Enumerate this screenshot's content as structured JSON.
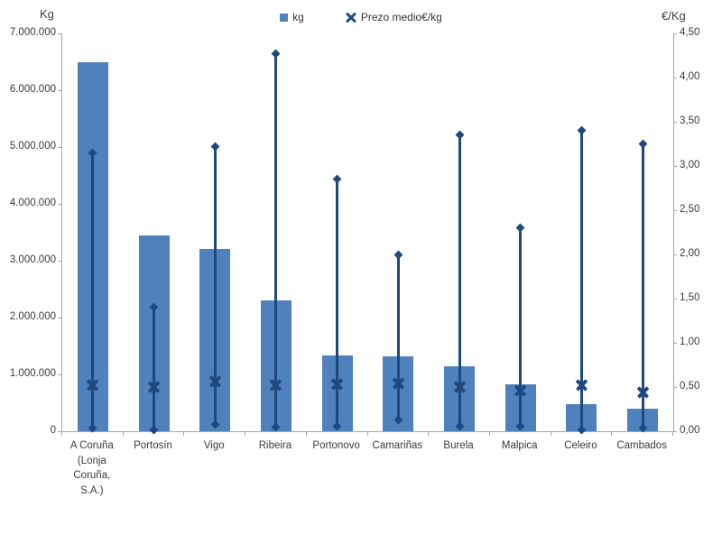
{
  "chart_data": {
    "type": "bar",
    "subtype": "bars-with-highlow-price-lines",
    "title": "",
    "grid": false,
    "legend_position": "top-center",
    "categories": [
      "A Coruña (Lonja Coruña, S.A.)",
      "Portosín",
      "Vigo",
      "Ribeira",
      "Portonovo",
      "Camariñas",
      "Burela",
      "Malpica",
      "Celeiro",
      "Cambados"
    ],
    "bar_series": {
      "name": "kg",
      "axis": "left",
      "color": "#4F81BD",
      "values": [
        6500000,
        3450000,
        3200000,
        2300000,
        1330000,
        1320000,
        1150000,
        820000,
        480000,
        400000
      ]
    },
    "price_series": {
      "name": "Prezo medio€/kg",
      "axis": "right",
      "color": "#1F497D",
      "marker": "x",
      "avg": [
        0.52,
        0.5,
        0.56,
        0.52,
        0.53,
        0.54,
        0.5,
        0.46,
        0.52,
        0.44
      ],
      "max": [
        3.15,
        1.4,
        3.22,
        4.27,
        2.85,
        2.0,
        3.35,
        2.3,
        3.4,
        3.25
      ],
      "min": [
        0.04,
        0.02,
        0.08,
        0.05,
        0.06,
        0.13,
        0.06,
        0.06,
        0.02,
        0.04
      ]
    },
    "left_axis": {
      "title": "Kg",
      "min": 0,
      "max": 7000000,
      "step": 1000000,
      "tick_labels": [
        "7.000.000",
        "6.000.000",
        "5.000.000",
        "4.000.000",
        "3.000.000",
        "2.000.000",
        "1.000.000",
        "0"
      ]
    },
    "right_axis": {
      "title": "€/Kg",
      "min": 0,
      "max": 4.5,
      "step": 0.5,
      "tick_labels": [
        "4,50",
        "4,00",
        "3,50",
        "3,00",
        "2,50",
        "2,00",
        "1,50",
        "1,00",
        "0,50",
        "0,00"
      ]
    }
  },
  "colors": {
    "bar": "#4F81BD",
    "line": "#1F497D",
    "axis": "#A6A6A6",
    "text": "#3A3A3A",
    "background": "#FFFFFF"
  }
}
